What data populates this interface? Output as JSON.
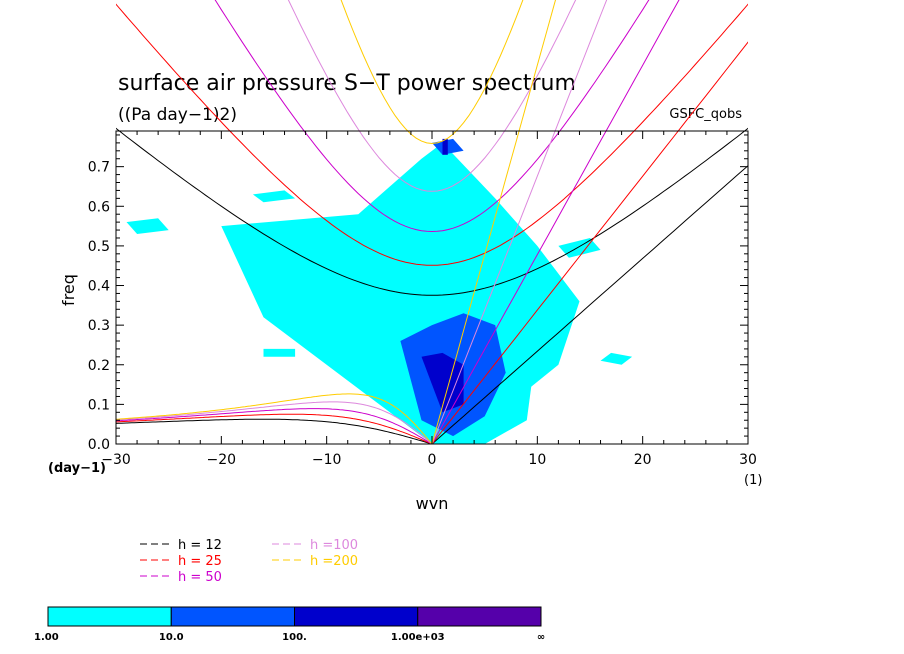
{
  "chart_data": {
    "type": "heatmap",
    "title": "surface air pressure S−T power spectrum",
    "subtitle": "((Pa day−1)2)",
    "dataset_label": "GSFC_qobs",
    "xlabel": "wvn",
    "ylabel": "freq",
    "x_unit": "(1)",
    "y_unit": "(day−1)",
    "xlim": [
      -30,
      30
    ],
    "ylim": [
      0,
      0.79
    ],
    "x_ticks": [
      -30,
      -20,
      -10,
      0,
      10,
      20,
      30
    ],
    "x_tick_labels": [
      "−30",
      "−20",
      "−10",
      "0",
      "10",
      "20",
      "30"
    ],
    "y_ticks": [
      0,
      0.1,
      0.2,
      0.3,
      0.4,
      0.5,
      0.6,
      0.7
    ],
    "y_tick_labels": [
      "0.0",
      "0.1",
      "0.2",
      "0.3",
      "0.4",
      "0.5",
      "0.6",
      "0.7"
    ],
    "grid": false,
    "dispersion_curves": [
      {
        "label": "h = 12",
        "h": 12,
        "color": "#000000"
      },
      {
        "label": "h = 25",
        "h": 25,
        "color": "#ff0000"
      },
      {
        "label": "h = 50",
        "h": 50,
        "color": "#cc00cc"
      },
      {
        "label": "h =100",
        "h": 100,
        "color": "#dd88dd"
      },
      {
        "label": "h =200",
        "h": 200,
        "color": "#ffcc00"
      }
    ],
    "colorbar": {
      "levels": [
        "1.00",
        "10.0",
        "100.",
        "1.00e+03",
        "∞"
      ],
      "colors": [
        "#00ffff",
        "#0055ff",
        "#0000cc",
        "#5500aa"
      ]
    },
    "power_regions": [
      {
        "level": 1,
        "x": [
          -20,
          -7,
          -1,
          1,
          6,
          10,
          14,
          12,
          5,
          0,
          -6,
          -16,
          -20
        ],
        "y": [
          0.55,
          0.58,
          0.72,
          0.76,
          0.62,
          0.5,
          0.36,
          0.2,
          0.05,
          0.0,
          0.12,
          0.32,
          0.55
        ]
      },
      {
        "level": 1,
        "x": [
          -2,
          1,
          5,
          8,
          10,
          9,
          5,
          0,
          -3,
          -2
        ],
        "y": [
          0.2,
          0.35,
          0.44,
          0.4,
          0.26,
          0.06,
          0.0,
          0.0,
          0.08,
          0.2
        ]
      },
      {
        "level": 1,
        "x": [
          -29,
          -26,
          -25,
          -28,
          -29
        ],
        "y": [
          0.56,
          0.57,
          0.54,
          0.53,
          0.56
        ]
      },
      {
        "level": 1,
        "x": [
          -17,
          -14,
          -13,
          -16,
          -17
        ],
        "y": [
          0.63,
          0.64,
          0.62,
          0.61,
          0.63
        ]
      },
      {
        "level": 1,
        "x": [
          12,
          15,
          16,
          13,
          12
        ],
        "y": [
          0.5,
          0.52,
          0.49,
          0.47,
          0.5
        ]
      },
      {
        "level": 1,
        "x": [
          17,
          19,
          18,
          16,
          17
        ],
        "y": [
          0.23,
          0.22,
          0.2,
          0.21,
          0.23
        ]
      },
      {
        "level": 1,
        "x": [
          -16,
          -13,
          -13,
          -16,
          -16
        ],
        "y": [
          0.24,
          0.24,
          0.22,
          0.22,
          0.24
        ]
      },
      {
        "level": 2,
        "x": [
          -3,
          0,
          3,
          6,
          7,
          5,
          2,
          -1,
          -3
        ],
        "y": [
          0.26,
          0.3,
          0.33,
          0.3,
          0.18,
          0.07,
          0.02,
          0.06,
          0.26
        ]
      },
      {
        "level": 2,
        "x": [
          0,
          2,
          3,
          1,
          0
        ],
        "y": [
          0.76,
          0.77,
          0.74,
          0.73,
          0.76
        ]
      },
      {
        "level": 3,
        "x": [
          -1,
          1,
          3,
          3,
          1,
          -1
        ],
        "y": [
          0.22,
          0.23,
          0.2,
          0.1,
          0.08,
          0.22
        ]
      },
      {
        "level": 3,
        "x": [
          1,
          1.5,
          1.5,
          1
        ],
        "y": [
          0.77,
          0.77,
          0.73,
          0.73
        ]
      }
    ]
  }
}
